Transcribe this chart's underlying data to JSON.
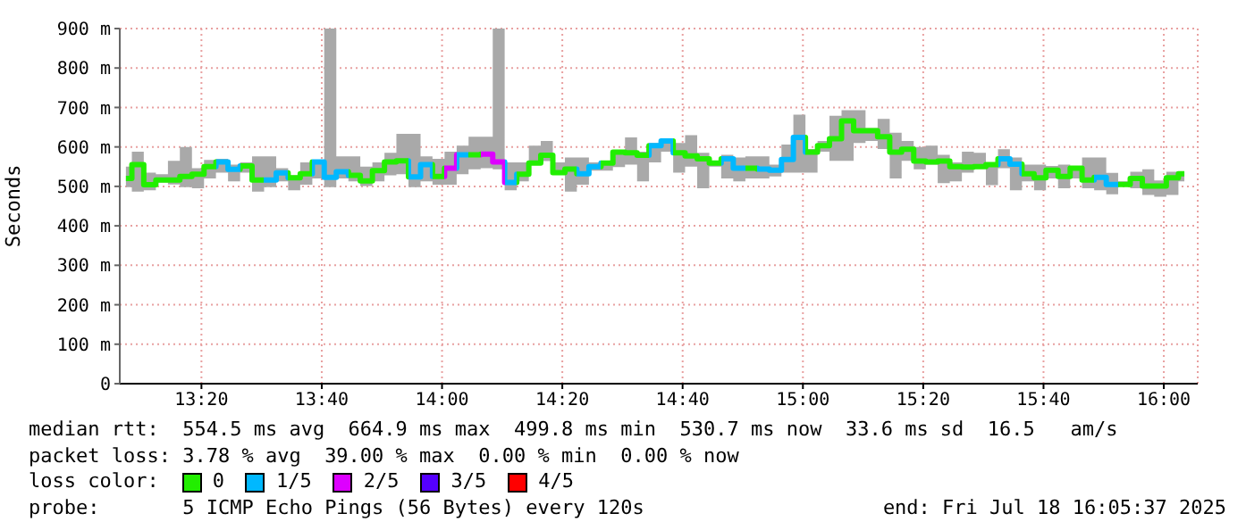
{
  "chart_data": {
    "type": "step",
    "ylabel": "Seconds",
    "x": [
      13.124,
      13.157,
      13.19,
      13.224,
      13.257,
      13.29,
      13.324,
      13.357,
      13.39,
      13.424,
      13.457,
      13.49,
      13.524,
      13.557,
      13.59,
      13.624,
      13.657,
      13.69,
      13.724,
      13.757,
      13.79,
      13.824,
      13.857,
      13.89,
      13.924,
      13.957,
      13.99,
      14.024,
      14.057,
      14.09,
      14.124,
      14.157,
      14.19,
      14.224,
      14.257,
      14.29,
      14.324,
      14.357,
      14.39,
      14.424,
      14.457,
      14.49,
      14.524,
      14.557,
      14.59,
      14.624,
      14.657,
      14.69,
      14.724,
      14.757,
      14.79,
      14.824,
      14.857,
      14.89,
      14.924,
      14.957,
      14.99,
      15.024,
      15.057,
      15.09,
      15.124,
      15.157,
      15.19,
      15.224,
      15.257,
      15.29,
      15.324,
      15.357,
      15.39,
      15.424,
      15.457,
      15.49,
      15.524,
      15.557,
      15.59,
      15.624,
      15.657,
      15.69,
      15.724,
      15.757,
      15.79,
      15.824,
      15.857,
      15.89,
      15.924,
      15.957,
      15.99,
      16.024,
      16.057
    ],
    "series": [
      {
        "color": "#22ee00",
        "values": [
          520,
          555,
          504,
          516,
          516,
          525,
          531,
          550,
          562,
          543,
          552,
          516,
          516,
          534,
          522,
          532,
          562,
          523,
          537,
          528,
          514,
          540,
          562,
          565,
          524,
          555,
          525,
          546,
          580,
          580,
          582,
          562,
          510,
          531,
          559,
          579,
          535,
          544,
          532,
          550,
          559,
          587,
          585,
          579,
          603,
          615,
          585,
          577,
          570,
          559,
          570,
          546,
          546,
          544,
          541,
          568,
          624,
          587,
          603,
          621,
          666,
          641,
          641,
          626,
          587,
          594,
          564,
          562,
          564,
          550,
          549,
          550,
          555,
          570,
          556,
          532,
          522,
          541,
          525,
          546,
          516,
          523,
          505,
          505,
          520,
          501,
          501,
          522,
          532
        ],
        "colors": [
          "#22ee00",
          "#22ee00",
          "#22ee00",
          "#22ee00",
          "#22ee00",
          "#22ee00",
          "#22ee00",
          "#22ee00",
          "#00b8ff",
          "#00b8ff",
          "#22ee00",
          "#22ee00",
          "#00b8ff",
          "#00b8ff",
          "#22ee00",
          "#22ee00",
          "#00b8ff",
          "#00b8ff",
          "#00b8ff",
          "#22ee00",
          "#22ee00",
          "#22ee00",
          "#22ee00",
          "#22ee00",
          "#00b8ff",
          "#00b8ff",
          "#22ee00",
          "#dd00ff",
          "#00b8ff",
          "#22ee00",
          "#dd00ff",
          "#dd00ff",
          "#00b8ff",
          "#22ee00",
          "#22ee00",
          "#22ee00",
          "#22ee00",
          "#22ee00",
          "#00b8ff",
          "#00b8ff",
          "#22ee00",
          "#22ee00",
          "#22ee00",
          "#22ee00",
          "#00b8ff",
          "#00b8ff",
          "#22ee00",
          "#22ee00",
          "#22ee00",
          "#22ee00",
          "#00b8ff",
          "#00b8ff",
          "#22ee00",
          "#00b8ff",
          "#00b8ff",
          "#00b8ff",
          "#00b8ff",
          "#22ee00",
          "#22ee00",
          "#22ee00",
          "#22ee00",
          "#22ee00",
          "#22ee00",
          "#22ee00",
          "#22ee00",
          "#22ee00",
          "#22ee00",
          "#22ee00",
          "#22ee00",
          "#22ee00",
          "#22ee00",
          "#22ee00",
          "#22ee00",
          "#00b8ff",
          "#00b8ff",
          "#22ee00",
          "#22ee00",
          "#22ee00",
          "#22ee00",
          "#22ee00",
          "#22ee00",
          "#00b8ff",
          "#00b8ff",
          "#22ee00",
          "#22ee00",
          "#22ee00",
          "#22ee00",
          "#22ee00",
          "#22ee00"
        ],
        "lower": [
          498,
          487,
          490,
          510,
          505,
          498,
          495,
          520,
          535,
          513,
          535,
          487,
          498,
          513,
          490,
          504,
          520,
          498,
          520,
          513,
          501,
          513,
          528,
          531,
          498,
          513,
          504,
          504,
          531,
          543,
          546,
          543,
          490,
          513,
          555,
          564,
          531,
          487,
          504,
          540,
          540,
          549,
          555,
          513,
          561,
          588,
          535,
          550,
          495,
          550,
          520,
          513,
          520,
          520,
          525,
          535,
          535,
          535,
          588,
          565,
          565,
          610,
          615,
          595,
          520,
          565,
          543,
          555,
          508,
          513,
          535,
          546,
          503,
          546,
          490,
          513,
          490,
          520,
          495,
          520,
          495,
          490,
          480,
          501,
          495,
          478,
          474,
          478,
          513
        ],
        "upper": [
          550,
          588,
          535,
          531,
          565,
          600,
          546,
          567,
          570,
          555,
          561,
          576,
          576,
          546,
          528,
          561,
          567,
          900,
          576,
          576,
          550,
          561,
          585,
          633,
          633,
          576,
          570,
          588,
          603,
          626,
          626,
          900,
          561,
          561,
          603,
          615,
          561,
          573,
          573,
          561,
          565,
          591,
          624,
          588,
          610,
          621,
          610,
          630,
          585,
          565,
          580,
          573,
          576,
          576,
          555,
          606,
          682,
          595,
          615,
          679,
          693,
          693,
          648,
          671,
          636,
          615,
          600,
          603,
          580,
          561,
          588,
          585,
          561,
          594,
          573,
          555,
          555,
          552,
          555,
          550,
          573,
          573,
          534,
          513,
          537,
          543,
          515,
          537,
          537
        ]
      },
      {
        "name": "0",
        "color": "#22ee00",
        "values": [
          null,
          null,
          null,
          null,
          null,
          null,
          null,
          null,
          null,
          null,
          null,
          null,
          null,
          null,
          null,
          null,
          null,
          null,
          null,
          null,
          null,
          null,
          null,
          null,
          null,
          null,
          null,
          null,
          null,
          null,
          null,
          null,
          null,
          null,
          null,
          null,
          null,
          null,
          null,
          null,
          null,
          null,
          null,
          null,
          null,
          null,
          null,
          null,
          null,
          null,
          null,
          null,
          null,
          null,
          null,
          null,
          null,
          null,
          null,
          null,
          null,
          null,
          null,
          null,
          null,
          null,
          null,
          null,
          null,
          null,
          null,
          null,
          null,
          null,
          null,
          null,
          null,
          null,
          null,
          null,
          null,
          null,
          null,
          null,
          null,
          null,
          null,
          null,
          null
        ]
      },
      {
        "name": "1/5",
        "color": "#00b8ff",
        "values": [
          null,
          null,
          null,
          null,
          null,
          null,
          null,
          null,
          null,
          null,
          null,
          null,
          null,
          null,
          null,
          null,
          null,
          null,
          null,
          null,
          null,
          null,
          null,
          null,
          null,
          null,
          null,
          null,
          null,
          null,
          null,
          null,
          null,
          null,
          null,
          null,
          null,
          null,
          null,
          null,
          null,
          null,
          null,
          null,
          null,
          null,
          null,
          null,
          null,
          null,
          null,
          null,
          null,
          null,
          null,
          null,
          null,
          null,
          null,
          null,
          null,
          null,
          null,
          null,
          null,
          null,
          null,
          null,
          null,
          null,
          null,
          null,
          null,
          null,
          null,
          null,
          null,
          null,
          null,
          null,
          null,
          null,
          null,
          null,
          null,
          null,
          null,
          null,
          null
        ]
      },
      {
        "name": "2/5",
        "color": "#dd00ff",
        "values": [
          null,
          null,
          null,
          null,
          null,
          null,
          null,
          null,
          null,
          null,
          null,
          null,
          null,
          null,
          null,
          null,
          null,
          null,
          null,
          null,
          null,
          null,
          null,
          null,
          null,
          null,
          null,
          null,
          null,
          null,
          null,
          null,
          null,
          null,
          null,
          null,
          null,
          null,
          null,
          null,
          null,
          null,
          null,
          null,
          null,
          null,
          null,
          null,
          null,
          null,
          null,
          null,
          null,
          null,
          null,
          null,
          null,
          null,
          null,
          null,
          null,
          null,
          null,
          null,
          null,
          null,
          null,
          null,
          null,
          null,
          null,
          null,
          null,
          null,
          null,
          null,
          null,
          null,
          null,
          null,
          null,
          null,
          null,
          null,
          null,
          null,
          null,
          null,
          null
        ]
      },
      {
        "name": "3/5",
        "color": "#5500ff",
        "values": [
          null,
          null,
          null,
          null,
          null,
          null,
          null,
          null,
          null,
          null,
          null,
          null,
          null,
          null,
          null,
          null,
          null,
          null,
          null,
          null,
          null,
          null,
          null,
          null,
          null,
          null,
          null,
          null,
          null,
          null,
          null,
          null,
          null,
          null,
          null,
          null,
          null,
          null,
          null,
          null,
          null,
          null,
          null,
          null,
          null,
          null,
          null,
          null,
          null,
          null,
          null,
          null,
          null,
          null,
          null,
          null,
          null,
          null,
          null,
          null,
          null,
          null,
          null,
          null,
          null,
          null,
          null,
          null,
          null,
          null,
          null,
          null,
          null,
          null,
          null,
          null,
          null,
          null,
          null,
          null,
          null,
          null,
          null,
          null,
          null,
          null,
          null,
          null,
          null
        ]
      },
      {
        "name": "4/5",
        "color": "#ff0000",
        "values": [
          null,
          null,
          null,
          null,
          null,
          null,
          null,
          null,
          null,
          null,
          null,
          null,
          null,
          null,
          null,
          null,
          null,
          null,
          null,
          null,
          null,
          null,
          null,
          null,
          null,
          null,
          null,
          null,
          null,
          null,
          null,
          null,
          null,
          null,
          null,
          null,
          null,
          null,
          null,
          null,
          null,
          null,
          null,
          null,
          null,
          null,
          null,
          null,
          null,
          null,
          null,
          null,
          null,
          null,
          null,
          null,
          null,
          null,
          null,
          null,
          null,
          null,
          null,
          null,
          null,
          null,
          null,
          null,
          null,
          null,
          null,
          null,
          null,
          null,
          null,
          null,
          null,
          null,
          null,
          null,
          null,
          null,
          null,
          null,
          null,
          null,
          null,
          null,
          null
        ]
      }
    ],
    "xlim": [
      13.107,
      16.094
    ],
    "xticks": [
      {
        "value": 13.3333,
        "label": "13:20"
      },
      {
        "value": 13.6667,
        "label": "13:40"
      },
      {
        "value": 14,
        "label": "14:00"
      },
      {
        "value": 14.3333,
        "label": "14:20"
      },
      {
        "value": 14.6667,
        "label": "14:40"
      },
      {
        "value": 15,
        "label": "15:00"
      },
      {
        "value": 15.3333,
        "label": "15:20"
      },
      {
        "value": 15.6667,
        "label": "15:40"
      },
      {
        "value": 16,
        "label": "16:00"
      }
    ],
    "ylim": [
      0,
      900
    ],
    "yticks": [
      0,
      {
        "value": 100,
        "label": "100 m"
      },
      {
        "value": 200,
        "label": "200 m"
      },
      {
        "value": 300,
        "label": "300 m"
      },
      {
        "value": 400,
        "label": "400 m"
      },
      {
        "value": 500,
        "label": "500 m"
      },
      {
        "value": 600,
        "label": "600 m"
      },
      {
        "value": 700,
        "label": "700 m"
      },
      {
        "value": 800,
        "label": "800 m"
      },
      {
        "value": 900,
        "label": "900 m"
      }
    ],
    "grid": true,
    "legend": "bottom",
    "legend_title": "loss color:",
    "annotations": [
      "median rtt:  554.5 ms avg  664.9 ms max  499.8 ms min  530.7 ms now  33.6 ms sd  16.5   am/s",
      "packet loss: 3.78 % avg  39.00 % max  0.00 % min  0.00 % now",
      "probe:       5 ICMP Echo Pings (56 Bytes) every 120s",
      "end: Fri Jul 18 16:05:37 2025"
    ]
  }
}
